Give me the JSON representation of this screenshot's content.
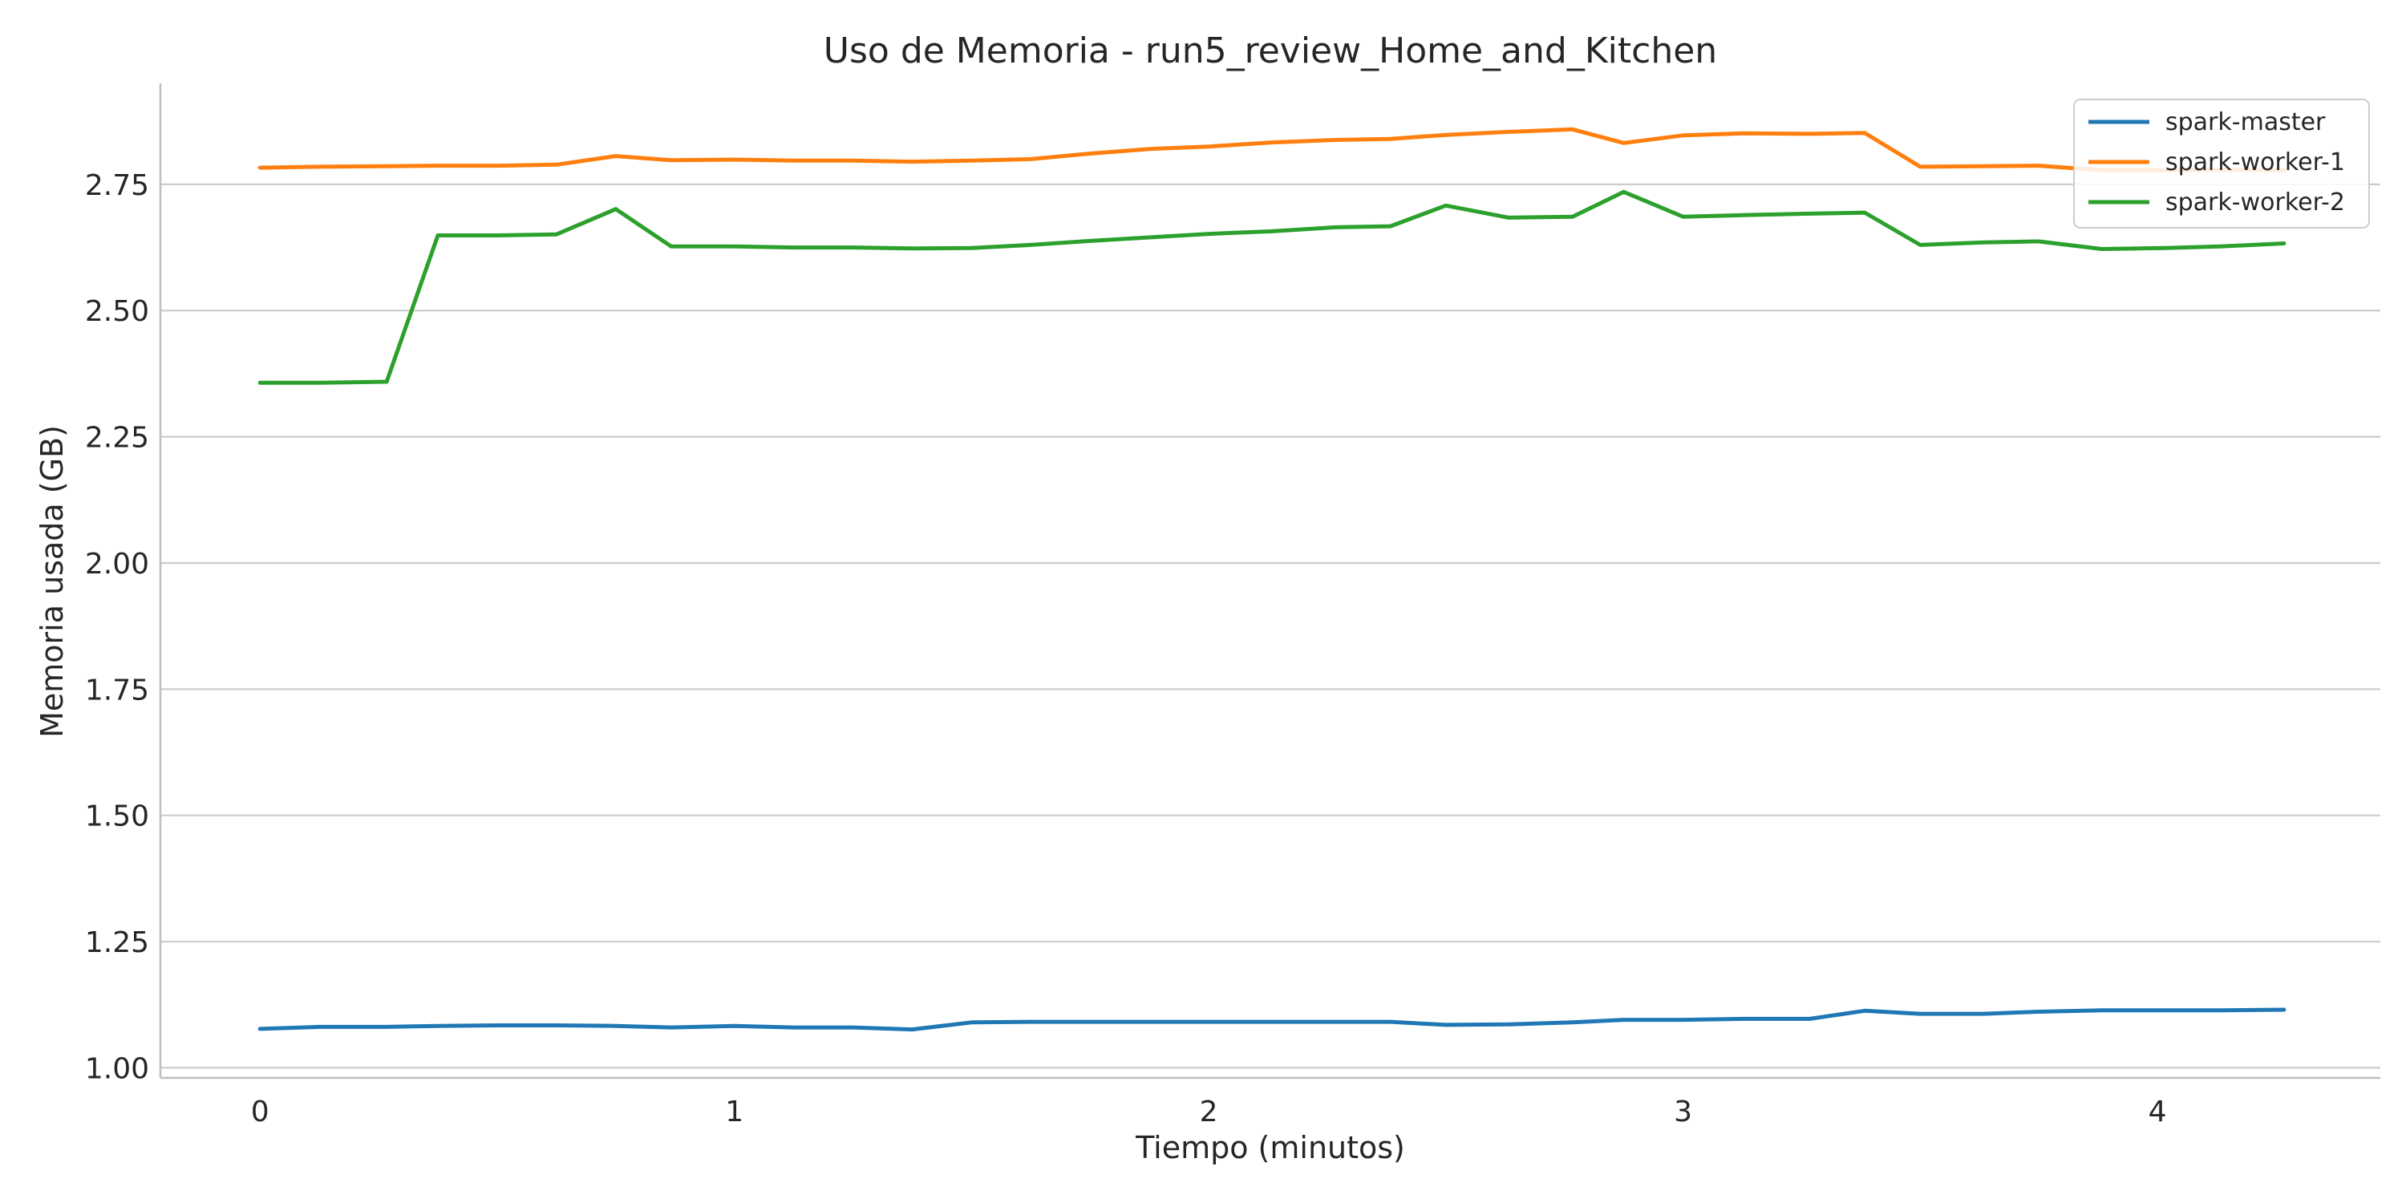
{
  "chart_data": {
    "type": "line",
    "title": "Uso de Memoria - run5_review_Home_and_Kitchen",
    "xlabel": "Tiempo (minutos)",
    "ylabel": "Memoria usada (GB)",
    "xlim": [
      -0.21,
      4.47
    ],
    "ylim": [
      0.98,
      2.95
    ],
    "xticks": [
      0,
      1,
      2,
      3,
      4
    ],
    "xtick_labels": [
      "0",
      "1",
      "2",
      "3",
      "4"
    ],
    "yticks": [
      1.0,
      1.25,
      1.5,
      1.75,
      2.0,
      2.25,
      2.5,
      2.75
    ],
    "ytick_labels": [
      "1.00",
      "1.25",
      "1.50",
      "1.75",
      "2.00",
      "2.25",
      "2.50",
      "2.75"
    ],
    "grid": "horizontal",
    "legend_position": "top-right",
    "x": [
      0,
      0.125,
      0.267,
      0.375,
      0.5,
      0.625,
      0.75,
      0.867,
      1.0,
      1.125,
      1.25,
      1.375,
      1.5,
      1.625,
      1.75,
      1.875,
      2.0,
      2.133,
      2.267,
      2.383,
      2.5,
      2.633,
      2.767,
      2.875,
      3.0,
      3.125,
      3.267,
      3.383,
      3.5,
      3.633,
      3.75,
      3.883,
      4.017,
      4.133,
      4.267
    ],
    "series": [
      {
        "name": "spark-master",
        "color": "#1f77b4",
        "values": [
          1.077,
          1.081,
          1.081,
          1.083,
          1.084,
          1.084,
          1.083,
          1.08,
          1.083,
          1.08,
          1.08,
          1.076,
          1.09,
          1.091,
          1.091,
          1.091,
          1.091,
          1.091,
          1.091,
          1.091,
          1.085,
          1.086,
          1.09,
          1.095,
          1.095,
          1.097,
          1.097,
          1.113,
          1.107,
          1.107,
          1.111,
          1.114,
          1.114,
          1.114,
          1.115
        ]
      },
      {
        "name": "spark-worker-1",
        "color": "#ff7f0e",
        "values": [
          2.783,
          2.785,
          2.786,
          2.787,
          2.787,
          2.789,
          2.806,
          2.798,
          2.799,
          2.797,
          2.797,
          2.795,
          2.797,
          2.8,
          2.811,
          2.82,
          2.825,
          2.833,
          2.838,
          2.84,
          2.848,
          2.854,
          2.859,
          2.832,
          2.847,
          2.851,
          2.85,
          2.852,
          2.785,
          2.786,
          2.787,
          2.778,
          2.778,
          2.779,
          2.778
        ]
      },
      {
        "name": "spark-worker-2",
        "color": "#2ca02c",
        "values": [
          2.357,
          2.357,
          2.359,
          2.649,
          2.649,
          2.651,
          2.701,
          2.627,
          2.627,
          2.625,
          2.625,
          2.623,
          2.624,
          2.63,
          2.638,
          2.645,
          2.652,
          2.657,
          2.665,
          2.667,
          2.708,
          2.684,
          2.686,
          2.735,
          2.686,
          2.689,
          2.692,
          2.694,
          2.63,
          2.635,
          2.637,
          2.622,
          2.624,
          2.627,
          2.633
        ]
      }
    ]
  }
}
